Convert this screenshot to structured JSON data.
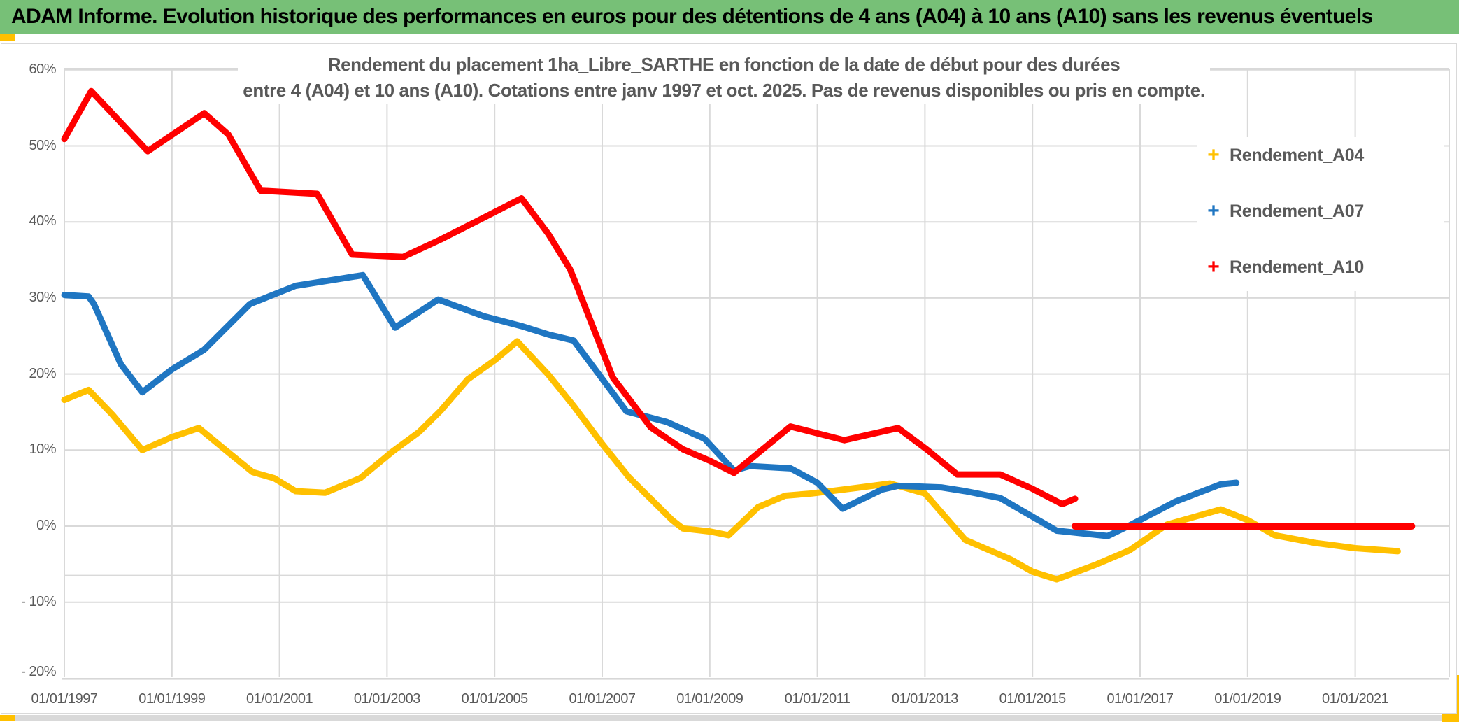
{
  "header": {
    "title": "ADAM Informe. Evolution historique des performances en euros pour des détentions de 4 ans (A04) à 10 ans (A10) sans les revenus éventuels",
    "bg_color": "#77c077",
    "accent_color": "#ffc000"
  },
  "chart": {
    "title_line1": "Rendement du placement 1ha_Libre_SARTHE en fonction de la date de début pour des durées",
    "title_line2": "entre 4 (A04) et 10 ans (A10). Cotations entre janv 1997 et oct. 2025. Pas de revenus disponibles ou pris en compte.",
    "legend": [
      {
        "label": "Rendement_A04",
        "marker": "+",
        "color": "#FFC000"
      },
      {
        "label": "Rendement_A07",
        "marker": "+",
        "color": "#1F76C2"
      },
      {
        "label": "Rendement_A10",
        "marker": "+",
        "color": "#FF0000"
      }
    ]
  },
  "chart_data": {
    "type": "line",
    "title": "Rendement du placement 1ha_Libre_SARTHE en fonction de la date de début pour des durées entre 4 (A04) et 10 ans (A10). Cotations entre janv 1997 et oct. 2025. Pas de revenus disponibles ou pris en compte.",
    "xlabel": "",
    "ylabel": "",
    "x_tick_labels": [
      "01/01/1997",
      "01/01/1999",
      "01/01/2001",
      "01/01/2003",
      "01/01/2005",
      "01/01/2007",
      "01/01/2009",
      "01/01/2011",
      "01/01/2013",
      "01/01/2015",
      "01/01/2017",
      "01/01/2019",
      "01/01/2021"
    ],
    "x_tick_years": [
      1997,
      1999,
      2001,
      2003,
      2005,
      2007,
      2009,
      2011,
      2013,
      2015,
      2017,
      2019,
      2021
    ],
    "y_tick_labels": [
      "60%",
      "50%",
      "40%",
      "30%",
      "20%",
      "10%",
      "0%",
      "- 10%",
      "- 20%"
    ],
    "y_tick_values": [
      60,
      50,
      40,
      30,
      20,
      10,
      0,
      -10,
      -20
    ],
    "ylim": [
      -20,
      60
    ],
    "xlim_years": [
      1997.0,
      2022.75
    ],
    "grid": true,
    "legend_position": "right",
    "annotations": [
      {
        "type": "hline",
        "value": -6.5,
        "note": "faint extra horizontal line across plot"
      }
    ],
    "series": [
      {
        "name": "Rendement_A04",
        "color": "#FFC000",
        "points": [
          [
            1997.0,
            16.6
          ],
          [
            1997.45,
            17.9
          ],
          [
            1997.9,
            14.6
          ],
          [
            1998.45,
            10.0
          ],
          [
            1999.0,
            11.7
          ],
          [
            1999.5,
            12.9
          ],
          [
            2000.05,
            9.7
          ],
          [
            2000.5,
            7.1
          ],
          [
            2000.9,
            6.3
          ],
          [
            2001.3,
            4.6
          ],
          [
            2001.85,
            4.4
          ],
          [
            2002.5,
            6.3
          ],
          [
            2003.1,
            9.8
          ],
          [
            2003.6,
            12.4
          ],
          [
            2004.0,
            15.2
          ],
          [
            2004.5,
            19.3
          ],
          [
            2005.0,
            21.8
          ],
          [
            2005.42,
            24.3
          ],
          [
            2006.0,
            19.9
          ],
          [
            2006.47,
            15.8
          ],
          [
            2007.0,
            10.8
          ],
          [
            2007.5,
            6.4
          ],
          [
            2008.3,
            0.8
          ],
          [
            2008.5,
            -0.3
          ],
          [
            2009.0,
            -0.7
          ],
          [
            2009.35,
            -1.2
          ],
          [
            2009.9,
            2.5
          ],
          [
            2010.4,
            4.0
          ],
          [
            2010.9,
            4.3
          ],
          [
            2011.7,
            5.0
          ],
          [
            2012.35,
            5.6
          ],
          [
            2013.0,
            4.3
          ],
          [
            2013.75,
            -1.8
          ],
          [
            2014.6,
            -4.4
          ],
          [
            2015.0,
            -6.0
          ],
          [
            2015.45,
            -7.0
          ],
          [
            2016.2,
            -5.0
          ],
          [
            2016.8,
            -3.2
          ],
          [
            2017.5,
            0.2
          ],
          [
            2018.5,
            2.2
          ],
          [
            2019.0,
            0.8
          ],
          [
            2019.5,
            -1.2
          ],
          [
            2020.25,
            -2.2
          ],
          [
            2021.0,
            -2.9
          ],
          [
            2021.79,
            -3.3
          ]
        ]
      },
      {
        "name": "Rendement_A07",
        "color": "#1F76C2",
        "points": [
          [
            1997.0,
            30.4
          ],
          [
            1997.45,
            30.2
          ],
          [
            1997.55,
            29.2
          ],
          [
            1998.05,
            21.3
          ],
          [
            1998.45,
            17.6
          ],
          [
            1999.0,
            20.6
          ],
          [
            1999.6,
            23.2
          ],
          [
            2000.45,
            29.2
          ],
          [
            2001.3,
            31.6
          ],
          [
            2002.2,
            32.6
          ],
          [
            2002.55,
            33.0
          ],
          [
            2003.15,
            26.1
          ],
          [
            2003.95,
            29.8
          ],
          [
            2004.8,
            27.6
          ],
          [
            2005.5,
            26.3
          ],
          [
            2006.0,
            25.2
          ],
          [
            2006.47,
            24.4
          ],
          [
            2007.45,
            15.1
          ],
          [
            2008.2,
            13.7
          ],
          [
            2008.9,
            11.5
          ],
          [
            2009.45,
            7.3
          ],
          [
            2009.75,
            7.9
          ],
          [
            2010.5,
            7.6
          ],
          [
            2011.0,
            5.7
          ],
          [
            2011.47,
            2.3
          ],
          [
            2012.2,
            4.8
          ],
          [
            2012.5,
            5.3
          ],
          [
            2013.3,
            5.1
          ],
          [
            2013.75,
            4.6
          ],
          [
            2014.4,
            3.7
          ],
          [
            2015.45,
            -0.6
          ],
          [
            2016.4,
            -1.3
          ],
          [
            2016.78,
            0.0
          ],
          [
            2017.65,
            3.2
          ],
          [
            2018.5,
            5.5
          ],
          [
            2018.79,
            5.7
          ]
        ]
      },
      {
        "name": "Rendement_A10",
        "color": "#FF0000",
        "points": [
          [
            1997.0,
            50.9
          ],
          [
            1997.5,
            57.2
          ],
          [
            1998.55,
            49.3
          ],
          [
            1999.6,
            54.3
          ],
          [
            2000.05,
            51.5
          ],
          [
            2000.65,
            44.1
          ],
          [
            2001.7,
            43.7
          ],
          [
            2002.35,
            35.7
          ],
          [
            2003.3,
            35.4
          ],
          [
            2004.0,
            37.7
          ],
          [
            2004.7,
            40.2
          ],
          [
            2005.5,
            43.1
          ],
          [
            2006.0,
            38.4
          ],
          [
            2006.4,
            33.8
          ],
          [
            2006.55,
            31.2
          ],
          [
            2007.2,
            19.5
          ],
          [
            2007.9,
            13.0
          ],
          [
            2008.5,
            10.1
          ],
          [
            2009.0,
            8.6
          ],
          [
            2009.45,
            7.0
          ],
          [
            2010.5,
            13.1
          ],
          [
            2011.5,
            11.3
          ],
          [
            2012.5,
            12.9
          ],
          [
            2013.05,
            10.0
          ],
          [
            2013.6,
            6.8
          ],
          [
            2014.4,
            6.8
          ],
          [
            2015.0,
            4.9
          ],
          [
            2015.55,
            2.9
          ],
          [
            2015.79,
            3.6
          ]
        ]
      },
      {
        "name": "Rendement_A10_zero_flat_segment",
        "color": "#FF0000",
        "points": [
          [
            2015.79,
            0.0
          ],
          [
            2022.05,
            0.0
          ]
        ],
        "note": "thick flat red line at 0% after end of A10 data"
      }
    ]
  },
  "layout_colors": {
    "gridline": "#d9d9d9",
    "axis_line": "#bfbfbf",
    "tick_text": "#595959",
    "bottom_bar": "#d9d9d9"
  }
}
